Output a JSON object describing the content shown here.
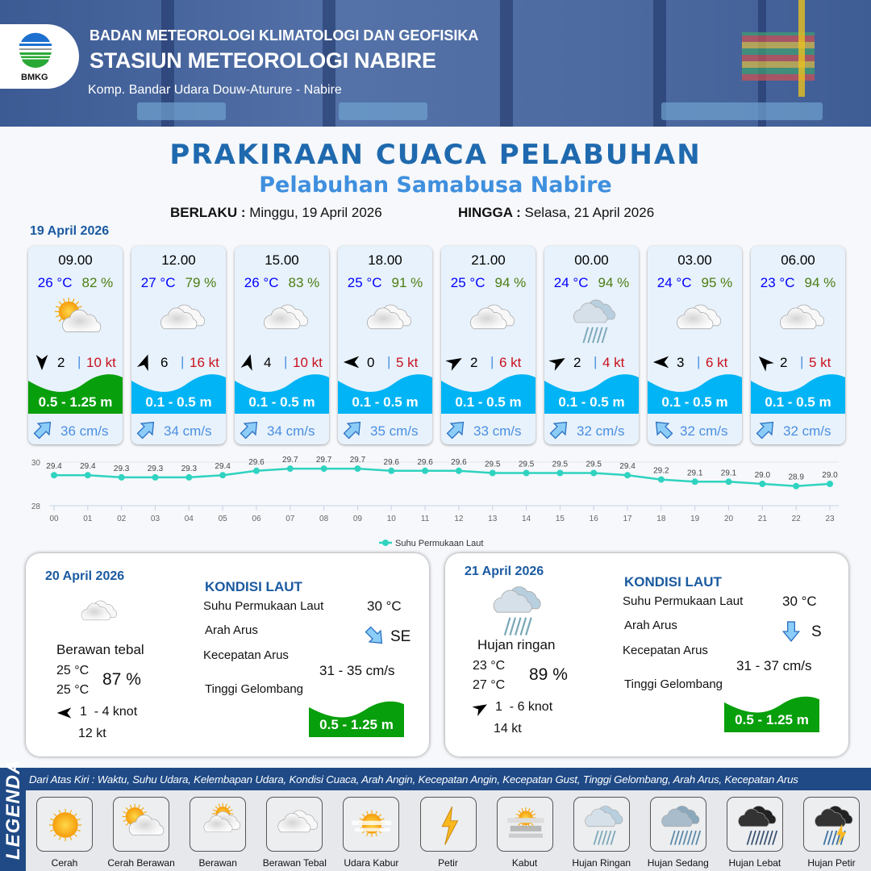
{
  "header": {
    "agency": "BADAN METEOROLOGI KLIMATOLOGI DAN GEOFISIKA",
    "station": "STASIUN METEOROLOGI NABIRE",
    "address": "Komp. Bandar Udara Douw-Aturure - Nabire",
    "logo_text": "BMKG"
  },
  "title": "PRAKIRAAN CUACA PELABUHAN",
  "subtitle": "Pelabuhan Samabusa Nabire",
  "validity": {
    "from_label": "BERLAKU :",
    "from": "Minggu, 19 April 2026",
    "to_label": "HINGGA :",
    "to": "Selasa, 21 April 2026"
  },
  "day1_label": "19 April 2026",
  "forecasts": [
    {
      "time": "09.00",
      "temp": "26 °C",
      "hum": "82 %",
      "weather": "cerah-berawan",
      "wind_dir_deg": 180,
      "wind": "2",
      "gust": "10 kt",
      "wave": "0.5 - 1.25 m",
      "wave_color": "#079f0b",
      "current_dir_deg": 45,
      "current": "36 cm/s"
    },
    {
      "time": "12.00",
      "temp": "27 °C",
      "hum": "79 %",
      "weather": "berawan-tebal",
      "wind_dir_deg": 20,
      "wind": "6",
      "gust": "16 kt",
      "wave": "0.1 - 0.5 m",
      "wave_color": "#00b4f5",
      "current_dir_deg": 45,
      "current": "34 cm/s"
    },
    {
      "time": "15.00",
      "temp": "26 °C",
      "hum": "83 %",
      "weather": "berawan-tebal",
      "wind_dir_deg": 15,
      "wind": "4",
      "gust": "10 kt",
      "wave": "0.1 - 0.5 m",
      "wave_color": "#00b4f5",
      "current_dir_deg": 45,
      "current": "34 cm/s"
    },
    {
      "time": "18.00",
      "temp": "25 °C",
      "hum": "91 %",
      "weather": "berawan-tebal",
      "wind_dir_deg": 270,
      "wind": "0",
      "gust": "5 kt",
      "wave": "0.1 - 0.5 m",
      "wave_color": "#00b4f5",
      "current_dir_deg": 45,
      "current": "35 cm/s"
    },
    {
      "time": "21.00",
      "temp": "25 °C",
      "hum": "94 %",
      "weather": "berawan-tebal",
      "wind_dir_deg": 60,
      "wind": "2",
      "gust": "6 kt",
      "wave": "0.1 - 0.5 m",
      "wave_color": "#00b4f5",
      "current_dir_deg": 45,
      "current": "33 cm/s"
    },
    {
      "time": "00.00",
      "temp": "24 °C",
      "hum": "94 %",
      "weather": "hujan-ringan",
      "wind_dir_deg": 60,
      "wind": "2",
      "gust": "4 kt",
      "wave": "0.1 - 0.5 m",
      "wave_color": "#00b4f5",
      "current_dir_deg": 45,
      "current": "32 cm/s"
    },
    {
      "time": "03.00",
      "temp": "24 °C",
      "hum": "95 %",
      "weather": "berawan-tebal",
      "wind_dir_deg": 270,
      "wind": "3",
      "gust": "6 kt",
      "wave": "0.1 - 0.5 m",
      "wave_color": "#00b4f5",
      "current_dir_deg": 315,
      "current": "32 cm/s"
    },
    {
      "time": "06.00",
      "temp": "23 °C",
      "hum": "94 %",
      "weather": "berawan-tebal",
      "wind_dir_deg": 315,
      "wind": "2",
      "gust": "5 kt",
      "wave": "0.1 - 0.5 m",
      "wave_color": "#00b4f5",
      "current_dir_deg": 45,
      "current": "32 cm/s"
    }
  ],
  "chart_data": {
    "type": "line",
    "x": [
      "00",
      "01",
      "02",
      "03",
      "04",
      "05",
      "06",
      "07",
      "08",
      "09",
      "10",
      "11",
      "12",
      "13",
      "14",
      "15",
      "16",
      "17",
      "18",
      "19",
      "20",
      "21",
      "22",
      "23"
    ],
    "series": [
      {
        "name": "Suhu Permukaan Laut",
        "values": [
          29.4,
          29.4,
          29.3,
          29.3,
          29.3,
          29.4,
          29.6,
          29.7,
          29.7,
          29.7,
          29.6,
          29.6,
          29.6,
          29.5,
          29.5,
          29.5,
          29.5,
          29.4,
          29.2,
          29.1,
          29.1,
          29.0,
          28.9,
          29.0
        ],
        "color": "#2fd3c0"
      }
    ],
    "y_ticks": [
      "28",
      "30"
    ],
    "ylim": [
      28,
      30
    ],
    "grid": "horizontal",
    "legend": "bottom-center"
  },
  "days": [
    {
      "date": "20 April 2026",
      "weather": "berawan-tebal",
      "condition": "Berawan tebal",
      "temp_min": "25 °C",
      "temp_max": "25 °C",
      "hum": "87 %",
      "wind_dir_deg": 270,
      "wind": "1  - 4 knot",
      "gust": "12 kt",
      "sea": {
        "title": "KONDISI LAUT",
        "sst_label": "Suhu Permukaan Laut",
        "sst": "30 °C",
        "dir_label": "Arah Arus",
        "dir": "SE",
        "dir_deg": 135,
        "speed_label": "Kecepatan Arus",
        "speed": "31 - 35 cm/s",
        "wave_label": "Tinggi Gelombang",
        "wave": "0.5 - 1.25 m",
        "wave_color": "#079f0b"
      }
    },
    {
      "date": "21 April 2026",
      "weather": "hujan-ringan",
      "condition": "Hujan ringan",
      "temp_min": "23 °C",
      "temp_max": "27 °C",
      "hum": "89 %",
      "wind_dir_deg": 60,
      "wind": "1  - 6 knot",
      "gust": "14 kt",
      "sea": {
        "title": "KONDISI LAUT",
        "sst_label": "Suhu Permukaan Laut",
        "sst": "30 °C",
        "dir_label": "Arah Arus",
        "dir": "S",
        "dir_deg": 180,
        "speed_label": "Kecepatan Arus",
        "speed": "31 - 37 cm/s",
        "wave_label": "Tinggi Gelombang",
        "wave": "0.5 - 1.25 m",
        "wave_color": "#079f0b"
      }
    }
  ],
  "legend": {
    "title": "LEGENDA",
    "description": "Dari Atas Kiri : Waktu, Suhu Udara, Kelembapan Udara, Kondisi Cuaca, Arah Angin, Kecepatan Angin, Kecepatan Gust, Tinggi Gelombang, Arah Arus, Kecepatan Arus",
    "items": [
      {
        "label": "Cerah",
        "icon": "cerah"
      },
      {
        "label": "Cerah Berawan",
        "icon": "cerah-berawan"
      },
      {
        "label": "Berawan",
        "icon": "berawan"
      },
      {
        "label": "Berawan Tebal",
        "icon": "berawan-tebal"
      },
      {
        "label": "Udara Kabur",
        "icon": "udara-kabur"
      },
      {
        "label": "Petir",
        "icon": "petir"
      },
      {
        "label": "Kabut",
        "icon": "kabut"
      },
      {
        "label": "Hujan Ringan",
        "icon": "hujan-ringan"
      },
      {
        "label": "Hujan Sedang",
        "icon": "hujan-sedang"
      },
      {
        "label": "Hujan Lebat",
        "icon": "hujan-lebat"
      },
      {
        "label": "Hujan Petir",
        "icon": "hujan-petir"
      }
    ]
  }
}
